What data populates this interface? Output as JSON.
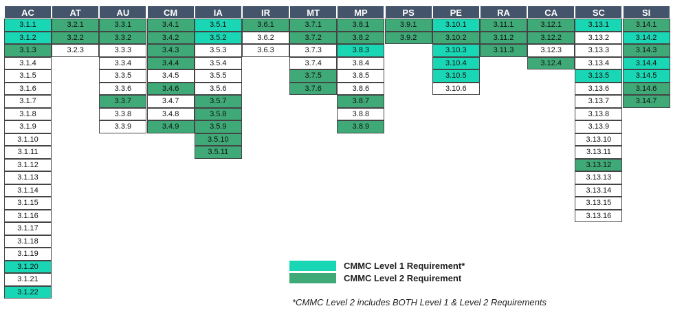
{
  "colors": {
    "header": "#44546a",
    "level1": "#19d6b5",
    "level2": "#3fa977",
    "plain": "#ffffff"
  },
  "columns": [
    {
      "name": "AC",
      "cells": [
        {
          "id": "3.1.1",
          "level": 1
        },
        {
          "id": "3.1.2",
          "level": 1
        },
        {
          "id": "3.1.3",
          "level": 2
        },
        {
          "id": "3.1.4",
          "level": 0
        },
        {
          "id": "3.1.5",
          "level": 0
        },
        {
          "id": "3.1.6",
          "level": 0
        },
        {
          "id": "3.1.7",
          "level": 0
        },
        {
          "id": "3.1.8",
          "level": 0
        },
        {
          "id": "3.1.9",
          "level": 0
        },
        {
          "id": "3.1.10",
          "level": 0
        },
        {
          "id": "3.1.11",
          "level": 0
        },
        {
          "id": "3.1.12",
          "level": 0
        },
        {
          "id": "3.1.13",
          "level": 0
        },
        {
          "id": "3.1.14",
          "level": 0
        },
        {
          "id": "3.1.15",
          "level": 0
        },
        {
          "id": "3.1.16",
          "level": 0
        },
        {
          "id": "3.1.17",
          "level": 0
        },
        {
          "id": "3.1.18",
          "level": 0
        },
        {
          "id": "3.1.19",
          "level": 0
        },
        {
          "id": "3.1.20",
          "level": 1
        },
        {
          "id": "3.1.21",
          "level": 0
        },
        {
          "id": "3.1.22",
          "level": 1
        }
      ]
    },
    {
      "name": "AT",
      "cells": [
        {
          "id": "3.2.1",
          "level": 2
        },
        {
          "id": "3.2.2",
          "level": 2
        },
        {
          "id": "3.2.3",
          "level": 0
        }
      ]
    },
    {
      "name": "AU",
      "cells": [
        {
          "id": "3.3.1",
          "level": 2
        },
        {
          "id": "3.3.2",
          "level": 2
        },
        {
          "id": "3.3.3",
          "level": 0
        },
        {
          "id": "3.3.4",
          "level": 0
        },
        {
          "id": "3.3.5",
          "level": 0
        },
        {
          "id": "3.3.6",
          "level": 0
        },
        {
          "id": "3.3.7",
          "level": 2
        },
        {
          "id": "3.3.8",
          "level": 0
        },
        {
          "id": "3.3.9",
          "level": 0
        }
      ]
    },
    {
      "name": "CM",
      "cells": [
        {
          "id": "3.4.1",
          "level": 2
        },
        {
          "id": "3.4.2",
          "level": 2
        },
        {
          "id": "3.4.3",
          "level": 2
        },
        {
          "id": "3.4.4",
          "level": 2
        },
        {
          "id": "3.4.5",
          "level": 0
        },
        {
          "id": "3.4.6",
          "level": 2
        },
        {
          "id": "3.4.7",
          "level": 0
        },
        {
          "id": "3.4.8",
          "level": 0
        },
        {
          "id": "3.4.9",
          "level": 2
        }
      ]
    },
    {
      "name": "IA",
      "cells": [
        {
          "id": "3.5.1",
          "level": 1
        },
        {
          "id": "3.5.2",
          "level": 1
        },
        {
          "id": "3.5.3",
          "level": 0
        },
        {
          "id": "3.5.4",
          "level": 0
        },
        {
          "id": "3.5.5",
          "level": 0
        },
        {
          "id": "3.5.6",
          "level": 0
        },
        {
          "id": "3.5.7",
          "level": 2
        },
        {
          "id": "3.5.8",
          "level": 2
        },
        {
          "id": "3.5.9",
          "level": 2
        },
        {
          "id": "3.5.10",
          "level": 2
        },
        {
          "id": "3.5.11",
          "level": 2
        }
      ]
    },
    {
      "name": "IR",
      "cells": [
        {
          "id": "3.6.1",
          "level": 2
        },
        {
          "id": "3.6.2",
          "level": 0
        },
        {
          "id": "3.6.3",
          "level": 0
        }
      ]
    },
    {
      "name": "MT",
      "cells": [
        {
          "id": "3.7.1",
          "level": 2
        },
        {
          "id": "3.7.2",
          "level": 2
        },
        {
          "id": "3.7.3",
          "level": 0
        },
        {
          "id": "3.7.4",
          "level": 0
        },
        {
          "id": "3.7.5",
          "level": 2
        },
        {
          "id": "3.7.6",
          "level": 2
        }
      ]
    },
    {
      "name": "MP",
      "cells": [
        {
          "id": "3.8.1",
          "level": 2
        },
        {
          "id": "3.8.2",
          "level": 2
        },
        {
          "id": "3.8.3",
          "level": 1
        },
        {
          "id": "3.8.4",
          "level": 0
        },
        {
          "id": "3.8.5",
          "level": 0
        },
        {
          "id": "3.8.6",
          "level": 0
        },
        {
          "id": "3.8.7",
          "level": 2
        },
        {
          "id": "3.8.8",
          "level": 0
        },
        {
          "id": "3.8.9",
          "level": 2
        }
      ]
    },
    {
      "name": "PS",
      "cells": [
        {
          "id": "3.9.1",
          "level": 2
        },
        {
          "id": "3.9.2",
          "level": 2
        }
      ]
    },
    {
      "name": "PE",
      "cells": [
        {
          "id": "3.10.1",
          "level": 1
        },
        {
          "id": "3.10.2",
          "level": 2
        },
        {
          "id": "3.10.3",
          "level": 1
        },
        {
          "id": "3.10.4",
          "level": 1
        },
        {
          "id": "3.10.5",
          "level": 1
        },
        {
          "id": "3.10.6",
          "level": 0
        }
      ]
    },
    {
      "name": "RA",
      "cells": [
        {
          "id": "3.11.1",
          "level": 2
        },
        {
          "id": "3.11.2",
          "level": 2
        },
        {
          "id": "3.11.3",
          "level": 2
        }
      ]
    },
    {
      "name": "CA",
      "cells": [
        {
          "id": "3.12.1",
          "level": 2
        },
        {
          "id": "3.12.2",
          "level": 2
        },
        {
          "id": "3.12.3",
          "level": 0
        },
        {
          "id": "3.12.4",
          "level": 2
        }
      ]
    },
    {
      "name": "SC",
      "cells": [
        {
          "id": "3.13.1",
          "level": 1
        },
        {
          "id": "3.13.2",
          "level": 0
        },
        {
          "id": "3.13.3",
          "level": 0
        },
        {
          "id": "3.13.4",
          "level": 0
        },
        {
          "id": "3.13.5",
          "level": 1
        },
        {
          "id": "3.13.6",
          "level": 0
        },
        {
          "id": "3.13.7",
          "level": 0
        },
        {
          "id": "3.13.8",
          "level": 0
        },
        {
          "id": "3.13.9",
          "level": 0
        },
        {
          "id": "3.13.10",
          "level": 0
        },
        {
          "id": "3.13.11",
          "level": 0
        },
        {
          "id": "3.13.12",
          "level": 2
        },
        {
          "id": "3.13.13",
          "level": 0
        },
        {
          "id": "3.13.14",
          "level": 0
        },
        {
          "id": "3.13.15",
          "level": 0
        },
        {
          "id": "3.13.16",
          "level": 0
        }
      ]
    },
    {
      "name": "SI",
      "cells": [
        {
          "id": "3.14.1",
          "level": 2
        },
        {
          "id": "3.14.2",
          "level": 1
        },
        {
          "id": "3.14.3",
          "level": 2
        },
        {
          "id": "3.14.4",
          "level": 1
        },
        {
          "id": "3.14.5",
          "level": 1
        },
        {
          "id": "3.14.6",
          "level": 2
        },
        {
          "id": "3.14.7",
          "level": 2
        }
      ]
    }
  ],
  "legend": {
    "level1_label": "CMMC Level 1 Requirement*",
    "level2_label": "CMMC Level 2 Requirement"
  },
  "footnote": "*CMMC Level 2 includes BOTH Level 1 & Level 2 Requirements"
}
